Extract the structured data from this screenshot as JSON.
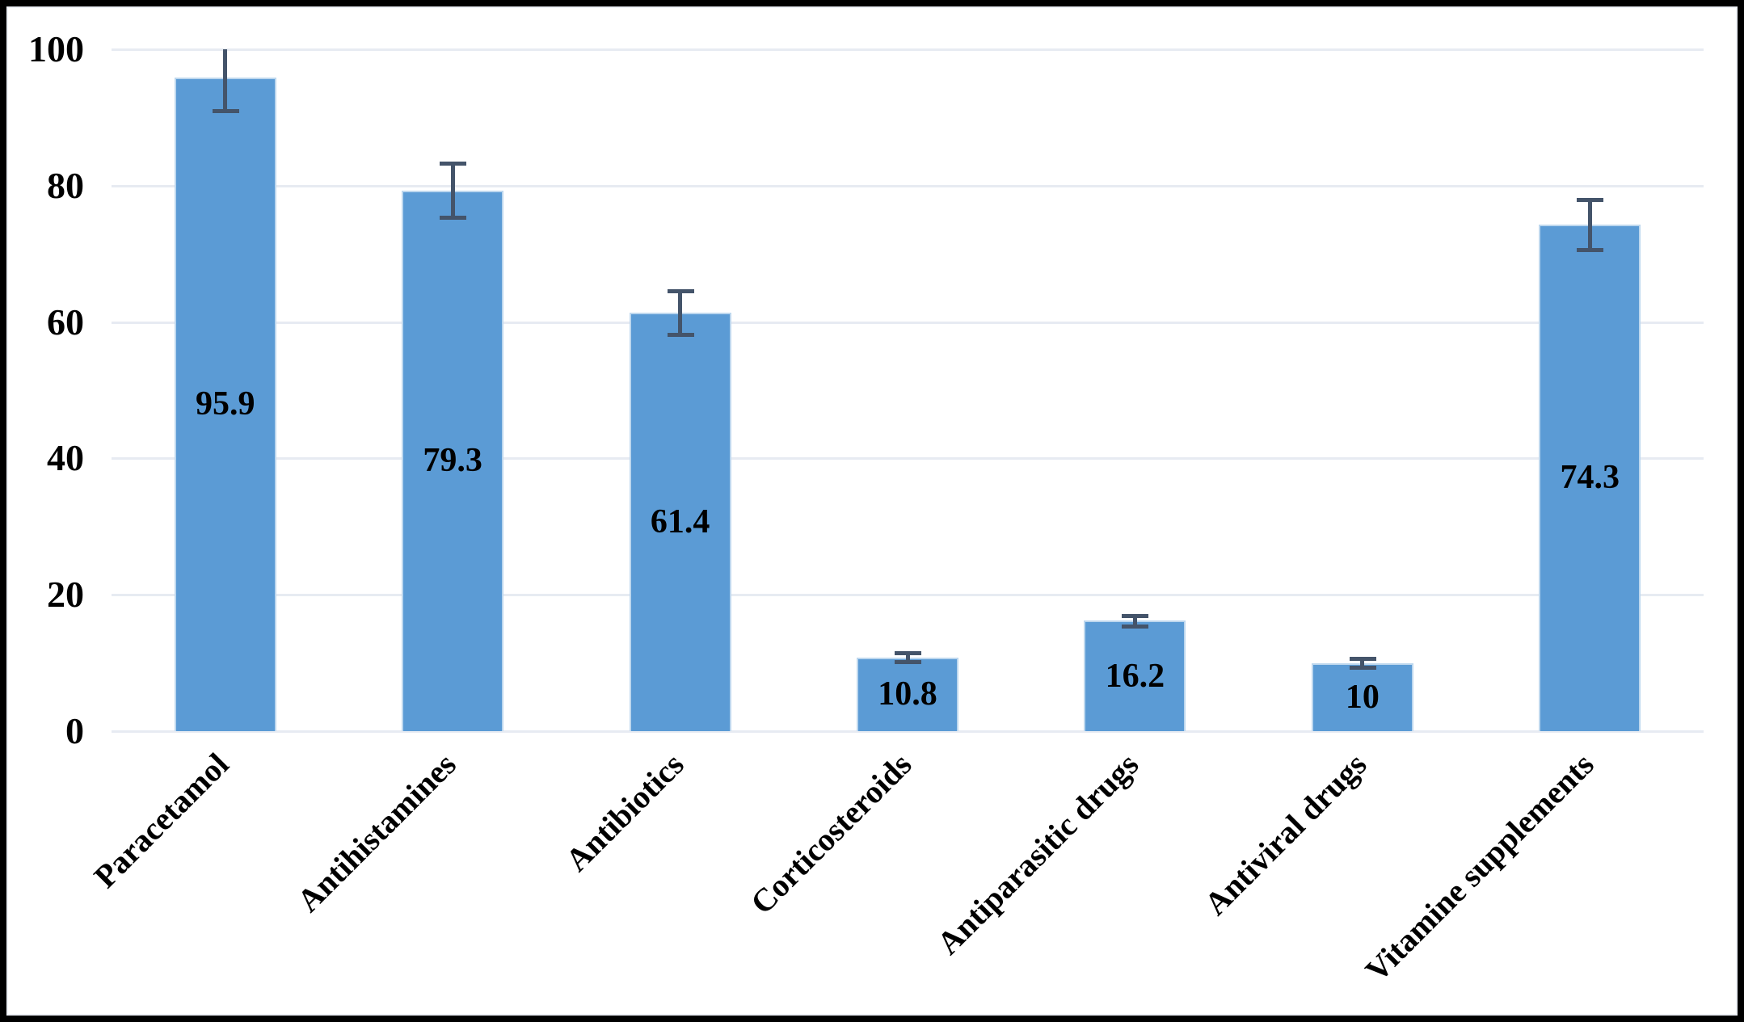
{
  "chart_data": {
    "type": "bar",
    "categories": [
      "Paracetamol",
      "Antihistamines",
      "Antibiotics",
      "Corticosteroids",
      "Antiparasitic drugs",
      "Antiviral drugs",
      "Vitamine supplements"
    ],
    "values": [
      95.9,
      79.3,
      61.4,
      10.8,
      16.2,
      10,
      74.3
    ],
    "value_labels": [
      "95.9",
      "79.3",
      "61.4",
      "10.8",
      "16.2",
      "10",
      "74.3"
    ],
    "error_bars": [
      4.9,
      4.0,
      3.2,
      0.65,
      0.75,
      0.65,
      3.7
    ],
    "title": "",
    "xlabel": "",
    "ylabel": "",
    "ylim": [
      0,
      100
    ],
    "yticks": [
      0,
      20,
      40,
      60,
      80,
      100
    ],
    "grid": true,
    "legend": false,
    "bar_color": "#5B9BD5",
    "bar_edge_color": "#BDD7EE",
    "error_bar_color": "#44546A",
    "gridline_color": "#E7EBF2",
    "text_color": "#000000",
    "frame_color": "#000000"
  }
}
